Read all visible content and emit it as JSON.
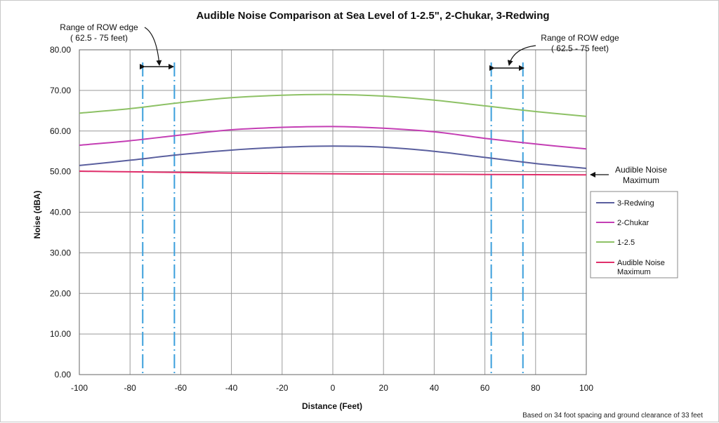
{
  "chart_data": {
    "type": "line",
    "title": "Audible Noise Comparison at Sea Level of 1-2.5\", 2-Chukar, 3-Redwing",
    "xlabel": "Distance (Feet)",
    "ylabel": "Noise (dBA)",
    "xlim": [
      -100,
      100
    ],
    "ylim": [
      0,
      80
    ],
    "x_ticks": [
      "-100",
      "-80",
      "-60",
      "-40",
      "-20",
      "0",
      "20",
      "40",
      "60",
      "80",
      "100"
    ],
    "y_ticks": [
      "0.00",
      "10.00",
      "20.00",
      "30.00",
      "40.00",
      "50.00",
      "60.00",
      "70.00",
      "80.00"
    ],
    "grid": true,
    "legend_position": "right",
    "x": [
      -100,
      -80,
      -60,
      -40,
      -20,
      0,
      20,
      40,
      60,
      80,
      100
    ],
    "series": [
      {
        "name": "3-Redwing",
        "color": "#5a5f9e",
        "values": [
          51.5,
          52.8,
          54.2,
          55.3,
          56.0,
          56.3,
          56.0,
          55.0,
          53.5,
          52.0,
          50.8
        ]
      },
      {
        "name": "2-Chukar",
        "color": "#c43eb4",
        "values": [
          56.5,
          57.6,
          59.0,
          60.3,
          60.9,
          61.1,
          60.7,
          59.8,
          58.2,
          56.8,
          55.6
        ]
      },
      {
        "name": "1-2.5",
        "color": "#8dc165",
        "values": [
          64.4,
          65.5,
          67.0,
          68.2,
          68.8,
          69.0,
          68.6,
          67.6,
          66.2,
          64.8,
          63.6
        ]
      },
      {
        "name": "Audible Noise Maximum",
        "color": "#e02f6b",
        "values": [
          50.1,
          49.95,
          49.8,
          49.65,
          49.55,
          49.45,
          49.4,
          49.35,
          49.3,
          49.25,
          49.2
        ]
      }
    ],
    "row_edge_lines": [
      -75,
      -62.5,
      62.5,
      75
    ],
    "annotations": {
      "left_row": {
        "line1": "Range of ROW edge",
        "line2": "( 62.5 - 75 feet)"
      },
      "right_row": {
        "line1": "Range of ROW edge",
        "line2": "( 62.5 - 75 feet)"
      },
      "max_label": {
        "line1": "Audible Noise",
        "line2": "Maximum"
      }
    },
    "footnote": "Based on 34 foot spacing and ground clearance of 33 feet"
  }
}
